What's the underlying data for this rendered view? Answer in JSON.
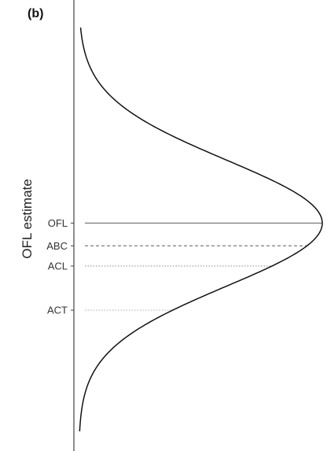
{
  "panel_label": "(b)",
  "chart_data": {
    "type": "line",
    "title": "",
    "xlabel": "",
    "ylabel": "OFL estimate",
    "grid": false,
    "legend": "none",
    "orientation": "density curve drawn horizontally against a vertical estimate axis",
    "reference_lines": [
      {
        "name": "OFL",
        "style": "solid",
        "color": "#6e6e6e",
        "y": 0.0
      },
      {
        "name": "ABC",
        "style": "dashed",
        "color": "#6e6e6e",
        "y": -0.36
      },
      {
        "name": "ACL",
        "style": "dotted",
        "color": "#8a8a8a",
        "y": -0.68
      },
      {
        "name": "ACT",
        "style": "dotted",
        "color": "#b8b8b8",
        "y": -1.38
      }
    ],
    "curve": {
      "name": "",
      "color": "#111111",
      "description": "normal density of OFL estimate, peak at OFL",
      "y_range": [
        -3.3,
        3.1
      ],
      "mean": 0.0,
      "sd": 1.0
    }
  }
}
